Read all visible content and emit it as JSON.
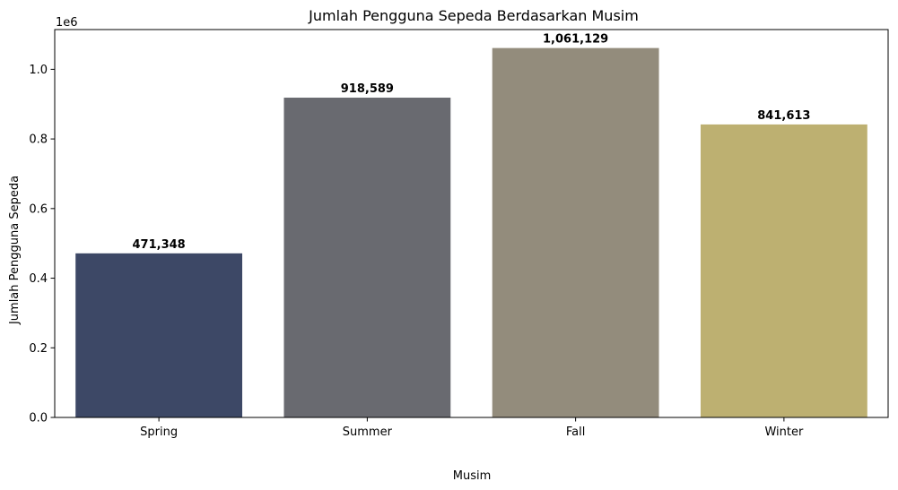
{
  "chart_data": {
    "type": "bar",
    "title": "Jumlah Pengguna Sepeda Berdasarkan Musim",
    "xlabel": "Musim",
    "ylabel": "Jumlah Pengguna Sepeda",
    "y_offset_label": "1e6",
    "categories": [
      "Spring",
      "Summer",
      "Fall",
      "Winter"
    ],
    "values": [
      471348,
      918589,
      1061129,
      841613
    ],
    "value_labels": [
      "471,348",
      "918,589",
      "1,061,129",
      "841,613"
    ],
    "colors": [
      "#3d4866",
      "#696a70",
      "#938c7c",
      "#bdb071"
    ],
    "ylim": [
      0,
      1114185
    ],
    "y_ticks": [
      0,
      200000,
      400000,
      600000,
      800000,
      1000000
    ],
    "y_tick_labels": [
      "0.0",
      "0.2",
      "0.4",
      "0.6",
      "0.8",
      "1.0"
    ],
    "grid": false,
    "legend": "none"
  }
}
